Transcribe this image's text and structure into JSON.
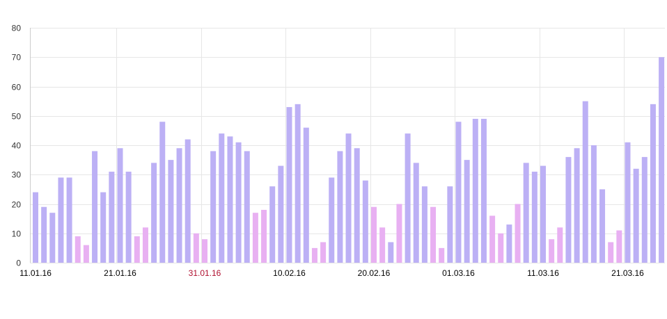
{
  "chart_data": {
    "type": "bar",
    "title": "",
    "xlabel": "",
    "ylabel": "",
    "ylim": [
      0,
      80
    ],
    "yticks": [
      0,
      10,
      20,
      30,
      40,
      50,
      60,
      70,
      80
    ],
    "grid": true,
    "legend": "none",
    "colors": {
      "weekday": "#bcb0f5",
      "weekend": "#e8b0f2",
      "grid": "#e6e6e6",
      "highlight_label": "#b01030"
    },
    "x_tick_labels": [
      {
        "index": 0,
        "label": "11.01.16",
        "highlight": false
      },
      {
        "index": 10,
        "label": "21.01.16",
        "highlight": false
      },
      {
        "index": 20,
        "label": "31.01.16",
        "highlight": true
      },
      {
        "index": 30,
        "label": "10.02.16",
        "highlight": false
      },
      {
        "index": 40,
        "label": "20.02.16",
        "highlight": false
      },
      {
        "index": 50,
        "label": "01.03.16",
        "highlight": false
      },
      {
        "index": 60,
        "label": "11.03.16",
        "highlight": false
      },
      {
        "index": 70,
        "label": "21.03.16",
        "highlight": false
      }
    ],
    "series": [
      {
        "values": [
          24,
          19,
          17,
          29,
          29,
          9,
          6,
          38,
          24,
          31,
          39,
          31,
          9,
          12,
          34,
          48,
          35,
          39,
          42,
          10,
          8,
          38,
          44,
          43,
          41,
          38,
          17,
          18,
          26,
          33,
          53,
          54,
          46,
          5,
          7,
          29,
          38,
          44,
          39,
          28,
          19,
          12,
          7,
          20,
          44,
          34,
          26,
          19,
          5,
          26,
          48,
          35,
          49,
          49,
          16,
          10,
          13,
          20,
          34,
          31,
          33,
          8,
          12,
          36,
          39,
          55,
          40,
          25,
          7,
          11,
          41,
          32,
          36,
          54,
          70
        ],
        "weekend": [
          false,
          false,
          false,
          false,
          false,
          true,
          true,
          false,
          false,
          false,
          false,
          false,
          true,
          true,
          false,
          false,
          false,
          false,
          false,
          true,
          true,
          false,
          false,
          false,
          false,
          false,
          true,
          true,
          false,
          false,
          false,
          false,
          false,
          true,
          true,
          false,
          false,
          false,
          false,
          false,
          true,
          true,
          false,
          true,
          false,
          false,
          false,
          true,
          true,
          false,
          false,
          false,
          false,
          false,
          true,
          true,
          false,
          true,
          false,
          false,
          false,
          true,
          true,
          false,
          false,
          false,
          false,
          false,
          true,
          true,
          false,
          false,
          false,
          false,
          false
        ]
      }
    ]
  }
}
